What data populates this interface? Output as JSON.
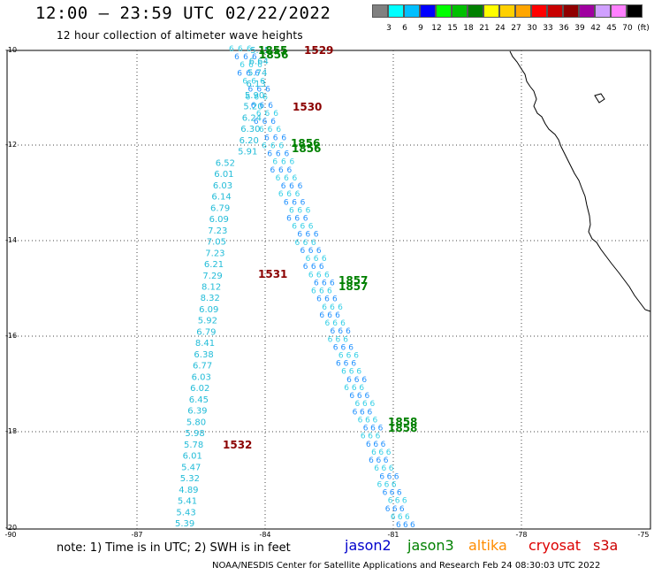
{
  "header": {
    "title": "12:00 – 23:59 UTC 02/22/2022",
    "subtitle": "12 hour collection of altimeter wave heights"
  },
  "colorbar": {
    "colors": [
      "#808080",
      "#00ffff",
      "#00bfff",
      "#0000ff",
      "#00ff00",
      "#00c000",
      "#008000",
      "#ffff00",
      "#ffd000",
      "#ffa500",
      "#ff0000",
      "#c80000",
      "#900000",
      "#a000a0",
      "#d0a0ff",
      "#ff80ff",
      "#000000"
    ],
    "labels": [
      "3",
      "6",
      "9",
      "12",
      "15",
      "18",
      "21",
      "24",
      "27",
      "30",
      "33",
      "36",
      "39",
      "42",
      "45",
      "70",
      "(ft)"
    ]
  },
  "map": {
    "lat_labels": [
      "-10",
      "-12",
      "-14",
      "-16",
      "-18",
      "-20"
    ],
    "lon_labels": [
      "-90",
      "-87",
      "-84",
      "-81",
      "-78",
      "-75"
    ]
  },
  "time_labels": [
    {
      "text": "1529",
      "color": "#8b0000"
    },
    {
      "text": "1530",
      "color": "#8b0000"
    },
    {
      "text": "1531",
      "color": "#8b0000"
    },
    {
      "text": "1532",
      "color": "#8b0000"
    },
    {
      "text": "1855",
      "color": "#008000"
    },
    {
      "text": "1856",
      "color": "#008000"
    },
    {
      "text": "1856",
      "color": "#008000"
    },
    {
      "text": "1856",
      "color": "#008000"
    },
    {
      "text": "1857",
      "color": "#008000"
    },
    {
      "text": "1857",
      "color": "#008000"
    },
    {
      "text": "1858",
      "color": "#008000"
    },
    {
      "text": "1858",
      "color": "#008000"
    }
  ],
  "wave_values": {
    "track_left": [
      "5.15",
      "6.64",
      "5.74",
      "6.13",
      "5.90",
      "5.20",
      "6.24",
      "6.30",
      "6.20",
      "5.91",
      "6.52",
      "6.01",
      "6.03",
      "6.14",
      "6.79",
      "6.09",
      "7.23",
      "7.05",
      "7.23",
      "6.21",
      "7.29",
      "8.12",
      "8.32",
      "6.09",
      "5.92",
      "6.79",
      "8.41",
      "6.38",
      "6.77",
      "6.03",
      "6.02",
      "6.45",
      "6.39",
      "5.80",
      "5.98",
      "5.78",
      "6.01",
      "5.47",
      "5.32",
      "4.89",
      "5.41",
      "5.43",
      "5.39"
    ]
  },
  "footer": {
    "note": "note: 1) Time is in UTC; 2) SWH is in feet",
    "satellites": [
      {
        "name": "jason2",
        "color": "#0000cc"
      },
      {
        "name": "jason3",
        "color": "#008000"
      },
      {
        "name": "altika",
        "color": "#ff8c00"
      },
      {
        "name": "cryosat",
        "color": "#dd0000"
      },
      {
        "name": "s3a",
        "color": "#cc0000"
      }
    ],
    "credit": "NOAA/NESDIS Center for Satellite Applications and Research    Feb 24 08:30:03 UTC 2022"
  }
}
